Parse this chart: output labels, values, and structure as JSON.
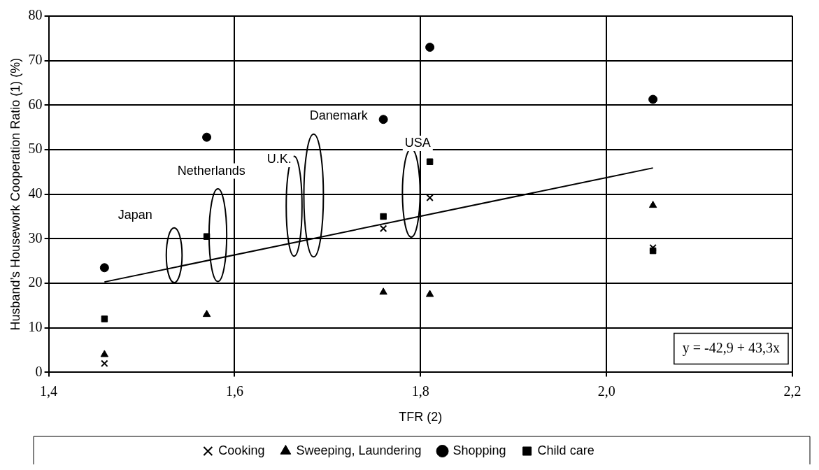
{
  "chart_data": {
    "type": "scatter",
    "xlabel": "TFR (2)",
    "ylabel": "Husband’s Housework Cooperation Ratio (1) (%)",
    "x": [
      1.46,
      1.57,
      1.76,
      1.81,
      2.05
    ],
    "series": [
      {
        "name": "Cooking",
        "color": "#000000",
        "marker": "cross",
        "values": [
          2,
          null,
          32.3,
          39.2,
          28
        ]
      },
      {
        "name": "Sweeping, Laundering",
        "color": "#000000",
        "marker": "triangle",
        "values": [
          4,
          13,
          18,
          17.5,
          37.5
        ]
      },
      {
        "name": "Shopping",
        "color": "#000000",
        "marker": "circle",
        "values": [
          23.5,
          52.8,
          56.8,
          73,
          61.3
        ]
      },
      {
        "name": "Child care",
        "color": "#000000",
        "marker": "square",
        "values": [
          12,
          30.5,
          35,
          47.3,
          27.3
        ]
      },
      {
        "type": "line",
        "color": "#000000",
        "marker": "none",
        "x": [
          1.46,
          2.05
        ],
        "values": [
          20.3,
          45.9
        ]
      }
    ],
    "xlim": [
      1.4,
      2.2
    ],
    "xticks": [
      {
        "value": 1.4,
        "label": "1,4"
      },
      {
        "value": 1.6,
        "label": "1,6"
      },
      {
        "value": 1.8,
        "label": "1,8"
      },
      {
        "value": 2.0,
        "label": "2,0"
      },
      {
        "value": 2.2,
        "label": "2,2"
      }
    ],
    "ylim": [
      0,
      80
    ],
    "yticks": [
      0,
      10,
      20,
      30,
      40,
      50,
      60,
      70,
      80
    ],
    "grid": true,
    "legend": "bottom",
    "annotations": [
      "Japan",
      "Netherlands",
      "U.K.",
      "Danemark",
      "USA",
      "y = -42,9 + 43,3x"
    ]
  }
}
